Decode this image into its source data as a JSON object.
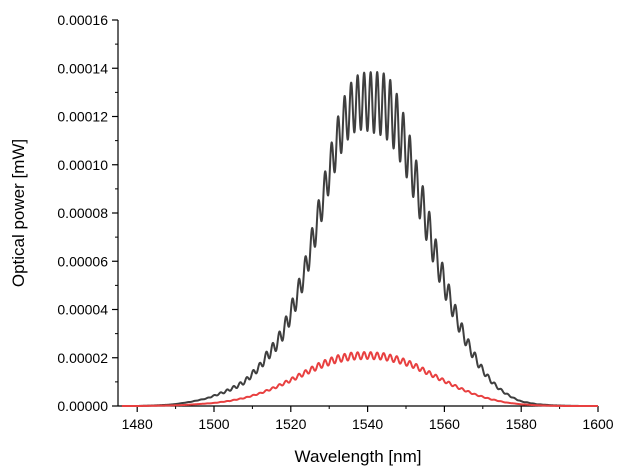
{
  "chart_data": {
    "type": "line",
    "title": "",
    "xlabel": "Wavelength [nm]",
    "ylabel": "Optical power [mW]",
    "xlim": [
      1475,
      1600
    ],
    "ylim": [
      0,
      0.00016
    ],
    "x_ticks": [
      "1480",
      "1500",
      "1520",
      "1540",
      "1560",
      "1580",
      "1600"
    ],
    "y_ticks": [
      "0.00000",
      "0.00002",
      "0.00004",
      "0.00006",
      "0.00008",
      "0.00010",
      "0.00012",
      "0.00014",
      "0.00016"
    ],
    "grid": false,
    "legend": "none",
    "series": [
      {
        "color": "#3f3f3f",
        "x": [
          1476,
          1480,
          1484,
          1488,
          1490,
          1494,
          1498,
          1500,
          1503,
          1506,
          1508,
          1510,
          1512,
          1514,
          1516,
          1518,
          1520,
          1522,
          1524,
          1526,
          1528,
          1530,
          1532,
          1534,
          1536,
          1538,
          1540,
          1542,
          1544,
          1546,
          1548,
          1550,
          1552,
          1554,
          1556,
          1558,
          1560,
          1562,
          1564,
          1566,
          1568,
          1570,
          1572,
          1574,
          1576,
          1578,
          1580,
          1584,
          1588,
          1592,
          1596,
          1600
        ],
        "y": [
          0.0,
          0.0,
          2e-07,
          5e-07,
          8e-07,
          1.8e-06,
          3.2e-06,
          4.5e-06,
          6.5e-06,
          9e-06,
          1.1e-05,
          1.45e-05,
          1.8e-05,
          2.35e-05,
          2.75e-05,
          3.4e-05,
          4.25e-05,
          5.2e-05,
          6.3e-05,
          7.7e-05,
          9.05e-05,
          0.000105,
          0.0001185,
          0.0001285,
          0.000135,
          0.000138,
          0.0001383,
          0.0001385,
          0.0001382,
          0.000135,
          0.000128,
          0.000118,
          0.000106,
          9.35e-05,
          8.1e-05,
          6.75e-05,
          5.65e-05,
          4.6e-05,
          3.65e-05,
          2.85e-05,
          2.2e-05,
          1.6e-05,
          1.15e-05,
          8e-06,
          5.5e-06,
          3.5e-06,
          2e-06,
          8e-07,
          3e-07,
          1e-07,
          0.0,
          0.0
        ],
        "mid": [
          0.0,
          0.0,
          2e-07,
          5e-07,
          8e-07,
          1.7e-06,
          3e-06,
          4e-06,
          5.5e-06,
          7.5e-06,
          9.2e-06,
          1.2e-05,
          1.5e-05,
          1.9e-05,
          2.25e-05,
          2.75e-05,
          3.45e-05,
          4.25e-05,
          5.25e-05,
          6.4e-05,
          7.65e-05,
          8.9e-05,
          0.0001,
          0.0001085,
          0.000113,
          0.0001145,
          0.000114,
          0.000113,
          0.000112,
          0.000109,
          0.000103,
          9.55e-05,
          8.6e-05,
          7.55e-05,
          6.5e-05,
          5.45e-05,
          4.55e-05,
          3.75e-05,
          3e-05,
          2.35e-05,
          1.8e-05,
          1.35e-05,
          9.8e-06,
          7e-06,
          4.8e-06,
          3.1e-06,
          1.8e-06,
          7e-07,
          3e-07,
          1e-07,
          0.0,
          0.0
        ],
        "ripple_period_nm": 1.7
      },
      {
        "color": "#e84040",
        "x": [
          1476,
          1480,
          1484,
          1488,
          1492,
          1496,
          1500,
          1504,
          1508,
          1512,
          1516,
          1520,
          1524,
          1528,
          1532,
          1536,
          1540,
          1544,
          1548,
          1552,
          1556,
          1560,
          1564,
          1568,
          1572,
          1576,
          1580,
          1584,
          1588,
          1592,
          1596,
          1600
        ],
        "y": [
          0.0,
          0.0,
          1e-07,
          2e-07,
          4e-07,
          8e-07,
          1.3e-06,
          2.2e-06,
          3.5e-06,
          5.5e-06,
          8.2e-06,
          1.15e-05,
          1.5e-05,
          1.85e-05,
          2.1e-05,
          2.22e-05,
          2.24e-05,
          2.2e-05,
          2.05e-05,
          1.8e-05,
          1.45e-05,
          1.1e-05,
          7.8e-06,
          5e-06,
          3e-06,
          1.5e-06,
          7e-07,
          3e-07,
          1e-07,
          0.0,
          0.0,
          0.0
        ],
        "mid": [
          0.0,
          0.0,
          1e-07,
          2e-07,
          4e-07,
          8e-07,
          1.2e-06,
          2e-06,
          3.2e-06,
          5e-06,
          7.3e-06,
          1e-05,
          1.3e-05,
          1.58e-05,
          1.8e-05,
          1.92e-05,
          1.95e-05,
          1.92e-05,
          1.78e-05,
          1.57e-05,
          1.27e-05,
          9.7e-06,
          6.9e-06,
          4.5e-06,
          2.7e-06,
          1.4e-06,
          7e-07,
          3e-07,
          1e-07,
          0.0,
          0.0,
          0.0
        ],
        "ripple_period_nm": 1.7
      }
    ]
  }
}
